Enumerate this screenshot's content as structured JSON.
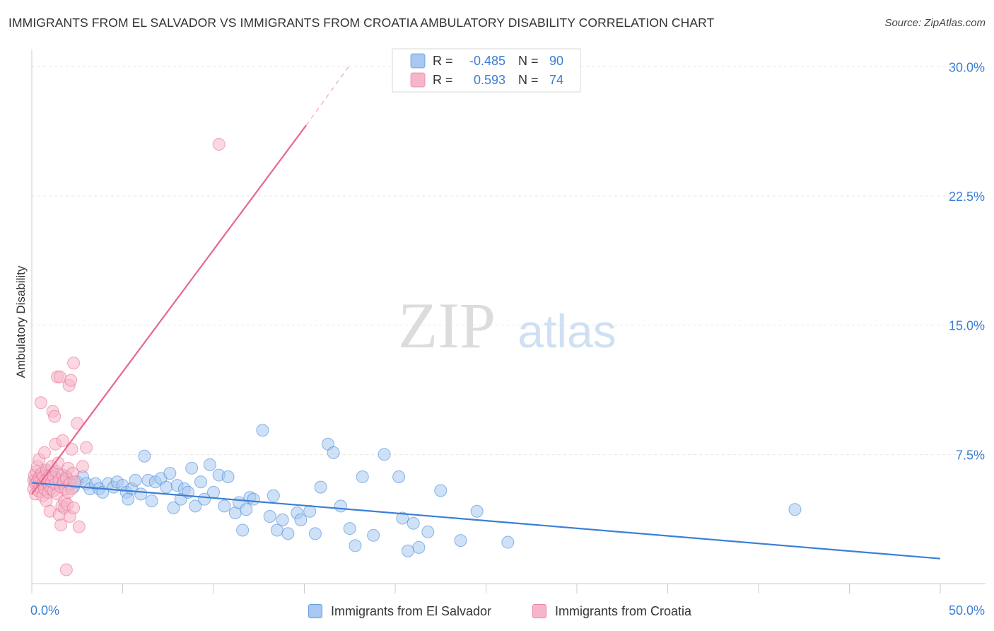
{
  "title": "IMMIGRANTS FROM EL SALVADOR VS IMMIGRANTS FROM CROATIA AMBULATORY DISABILITY CORRELATION CHART",
  "source": "Source: ZipAtlas.com",
  "watermark": {
    "zip": "ZIP",
    "atlas": "atlas"
  },
  "colors": {
    "blue": "#3a7fd5",
    "blue_fill": "#a8c8f0",
    "pink": "#e8668c",
    "pink_fill": "#f6b6c9",
    "tick_label": "#3a7fd5",
    "grid": "#e6e6e6"
  },
  "stats": [
    {
      "r_label": "R =",
      "r": "-0.485",
      "n_label": "N =",
      "n": "90"
    },
    {
      "r_label": "R =",
      "r": "0.593",
      "n_label": "N =",
      "n": "74"
    }
  ],
  "chart_data": {
    "type": "scatter",
    "title": "IMMIGRANTS FROM EL SALVADOR VS IMMIGRANTS FROM CROATIA AMBULATORY DISABILITY CORRELATION CHART",
    "xlabel": "",
    "ylabel": "Ambulatory Disability",
    "xlim": [
      0,
      50
    ],
    "ylim": [
      0,
      31
    ],
    "x_tick_labels": [
      "0.0%",
      "50.0%"
    ],
    "y_ticks": [
      7.5,
      15.0,
      22.5,
      30.0
    ],
    "y_tick_labels": [
      "7.5%",
      "15.0%",
      "22.5%",
      "30.0%"
    ],
    "grid": true,
    "legend_position": "bottom-center",
    "series": [
      {
        "name": "Immigrants from El Salvador",
        "color": "#3a7fd5",
        "r": -0.485,
        "n": 90,
        "trend": {
          "x": [
            0,
            50
          ],
          "y": [
            5.85,
            1.45
          ]
        },
        "points": [
          [
            0.2,
            6.0
          ],
          [
            0.4,
            6.2
          ],
          [
            0.5,
            5.9
          ],
          [
            0.6,
            6.3
          ],
          [
            0.7,
            6.1
          ],
          [
            0.8,
            6.5
          ],
          [
            0.9,
            5.8
          ],
          [
            1.0,
            6.0
          ],
          [
            1.1,
            6.2
          ],
          [
            1.2,
            6.4
          ],
          [
            1.3,
            5.9
          ],
          [
            1.4,
            6.1
          ],
          [
            1.5,
            5.8
          ],
          [
            1.7,
            6.0
          ],
          [
            1.9,
            6.2
          ],
          [
            2.1,
            5.9
          ],
          [
            2.3,
            5.6
          ],
          [
            2.5,
            5.9
          ],
          [
            2.8,
            6.2
          ],
          [
            3.0,
            5.8
          ],
          [
            3.2,
            5.5
          ],
          [
            3.5,
            5.8
          ],
          [
            3.7,
            5.5
          ],
          [
            3.9,
            5.3
          ],
          [
            4.2,
            5.8
          ],
          [
            4.5,
            5.6
          ],
          [
            4.7,
            5.9
          ],
          [
            5.0,
            5.7
          ],
          [
            5.2,
            5.3
          ],
          [
            5.5,
            5.5
          ],
          [
            5.3,
            4.9
          ],
          [
            5.7,
            6.0
          ],
          [
            6.0,
            5.2
          ],
          [
            6.2,
            7.4
          ],
          [
            6.4,
            6.0
          ],
          [
            6.6,
            4.8
          ],
          [
            6.8,
            5.9
          ],
          [
            7.1,
            6.1
          ],
          [
            7.4,
            5.6
          ],
          [
            7.6,
            6.4
          ],
          [
            7.8,
            4.4
          ],
          [
            8.0,
            5.7
          ],
          [
            8.2,
            4.9
          ],
          [
            8.4,
            5.5
          ],
          [
            8.6,
            5.3
          ],
          [
            8.8,
            6.7
          ],
          [
            9.0,
            4.5
          ],
          [
            9.3,
            5.9
          ],
          [
            9.5,
            4.9
          ],
          [
            9.8,
            6.9
          ],
          [
            10.0,
            5.3
          ],
          [
            10.3,
            6.3
          ],
          [
            10.6,
            4.5
          ],
          [
            10.8,
            6.2
          ],
          [
            11.2,
            4.1
          ],
          [
            11.4,
            4.7
          ],
          [
            11.6,
            3.1
          ],
          [
            11.8,
            4.3
          ],
          [
            12.0,
            5.0
          ],
          [
            12.2,
            4.9
          ],
          [
            12.7,
            8.9
          ],
          [
            13.1,
            3.9
          ],
          [
            13.3,
            5.1
          ],
          [
            13.5,
            3.1
          ],
          [
            13.8,
            3.7
          ],
          [
            14.1,
            2.9
          ],
          [
            14.6,
            4.1
          ],
          [
            14.8,
            3.7
          ],
          [
            15.3,
            4.2
          ],
          [
            15.6,
            2.9
          ],
          [
            15.9,
            5.6
          ],
          [
            16.3,
            8.1
          ],
          [
            16.6,
            7.6
          ],
          [
            17.0,
            4.5
          ],
          [
            17.5,
            3.2
          ],
          [
            17.8,
            2.2
          ],
          [
            18.2,
            6.2
          ],
          [
            18.8,
            2.8
          ],
          [
            19.4,
            7.5
          ],
          [
            20.2,
            6.2
          ],
          [
            20.4,
            3.8
          ],
          [
            20.7,
            1.9
          ],
          [
            21.0,
            3.5
          ],
          [
            21.3,
            2.1
          ],
          [
            21.8,
            3.0
          ],
          [
            22.5,
            5.4
          ],
          [
            23.6,
            2.5
          ],
          [
            24.5,
            4.2
          ],
          [
            26.2,
            2.4
          ],
          [
            42.0,
            4.3
          ]
        ]
      },
      {
        "name": "Immigrants from Croatia",
        "color": "#e8668c",
        "r": 0.593,
        "n": 74,
        "trend": {
          "x": [
            0,
            15.1
          ],
          "y": [
            5.2,
            26.6
          ],
          "dashed_to": {
            "x": 17.5,
            "y": 30.1
          }
        },
        "points": [
          [
            0.1,
            5.5
          ],
          [
            0.1,
            6.0
          ],
          [
            0.15,
            6.3
          ],
          [
            0.2,
            5.2
          ],
          [
            0.2,
            5.8
          ],
          [
            0.25,
            6.5
          ],
          [
            0.3,
            5.9
          ],
          [
            0.3,
            6.8
          ],
          [
            0.35,
            5.4
          ],
          [
            0.4,
            6.1
          ],
          [
            0.4,
            7.2
          ],
          [
            0.45,
            5.6
          ],
          [
            0.5,
            6.0
          ],
          [
            0.5,
            10.5
          ],
          [
            0.55,
            6.4
          ],
          [
            0.6,
            5.1
          ],
          [
            0.6,
            5.8
          ],
          [
            0.65,
            6.2
          ],
          [
            0.7,
            7.6
          ],
          [
            0.7,
            5.5
          ],
          [
            0.75,
            6.0
          ],
          [
            0.8,
            4.8
          ],
          [
            0.8,
            6.6
          ],
          [
            0.85,
            5.9
          ],
          [
            0.9,
            5.3
          ],
          [
            0.9,
            6.1
          ],
          [
            0.95,
            5.7
          ],
          [
            1.0,
            6.3
          ],
          [
            1.0,
            4.2
          ],
          [
            1.05,
            5.5
          ],
          [
            1.1,
            6.8
          ],
          [
            1.1,
            5.9
          ],
          [
            1.15,
            10.0
          ],
          [
            1.2,
            6.2
          ],
          [
            1.2,
            5.4
          ],
          [
            1.25,
            9.7
          ],
          [
            1.3,
            5.8
          ],
          [
            1.3,
            8.1
          ],
          [
            1.35,
            6.5
          ],
          [
            1.4,
            5.2
          ],
          [
            1.4,
            12.0
          ],
          [
            1.45,
            7.0
          ],
          [
            1.5,
            6.0
          ],
          [
            1.5,
            4.0
          ],
          [
            1.55,
            12.0
          ],
          [
            1.6,
            5.6
          ],
          [
            1.6,
            3.4
          ],
          [
            1.65,
            4.5
          ],
          [
            1.7,
            6.3
          ],
          [
            1.7,
            8.3
          ],
          [
            1.75,
            5.9
          ],
          [
            1.8,
            4.4
          ],
          [
            1.8,
            4.8
          ],
          [
            1.85,
            5.5
          ],
          [
            1.9,
            6.1
          ],
          [
            1.9,
            0.8
          ],
          [
            1.95,
            4.6
          ],
          [
            2.0,
            5.3
          ],
          [
            2.0,
            6.7
          ],
          [
            2.05,
            11.5
          ],
          [
            2.1,
            5.8
          ],
          [
            2.1,
            3.9
          ],
          [
            2.15,
            11.8
          ],
          [
            2.2,
            5.5
          ],
          [
            2.2,
            7.8
          ],
          [
            2.25,
            6.4
          ],
          [
            2.3,
            12.8
          ],
          [
            2.3,
            4.4
          ],
          [
            2.35,
            5.9
          ],
          [
            2.5,
            9.3
          ],
          [
            2.6,
            3.3
          ],
          [
            2.8,
            6.8
          ],
          [
            3.0,
            7.9
          ],
          [
            10.3,
            25.5
          ]
        ]
      }
    ]
  },
  "legend": [
    {
      "label": "Immigrants from El Salvador"
    },
    {
      "label": "Immigrants from Croatia"
    }
  ]
}
